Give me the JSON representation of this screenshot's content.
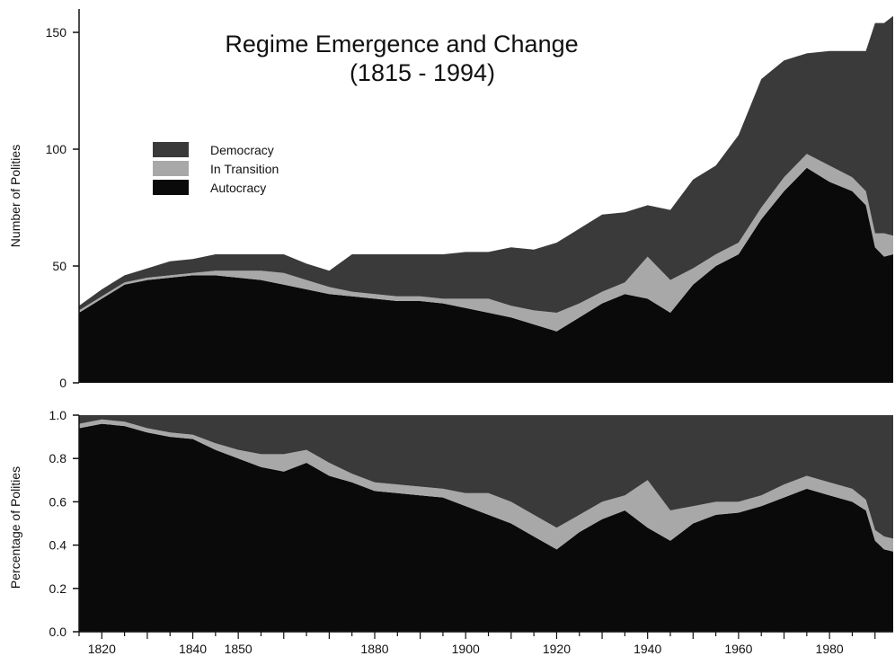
{
  "chart_data": [
    {
      "type": "area",
      "stacked": true,
      "title": "Regime Emergence and Change",
      "subtitle": "(1815 - 1994)",
      "xlabel": "",
      "ylabel": "Number of Polities",
      "xlim": [
        1815,
        1994
      ],
      "ylim": [
        0,
        160
      ],
      "y_ticks": [
        "0",
        "50",
        "100",
        "150"
      ],
      "y_tick_values": [
        0,
        50,
        100,
        150
      ],
      "grid": false,
      "legend_position": "upper-left",
      "x": [
        1815,
        1820,
        1825,
        1830,
        1835,
        1840,
        1845,
        1850,
        1855,
        1860,
        1865,
        1870,
        1875,
        1880,
        1885,
        1890,
        1895,
        1900,
        1905,
        1910,
        1915,
        1920,
        1925,
        1930,
        1935,
        1940,
        1945,
        1950,
        1955,
        1960,
        1965,
        1970,
        1975,
        1980,
        1985,
        1988,
        1990,
        1992,
        1994
      ],
      "series": [
        {
          "name": "Autocracy",
          "color": "#0a0a0a",
          "values": [
            30,
            36,
            42,
            44,
            45,
            46,
            46,
            45,
            44,
            42,
            40,
            38,
            37,
            36,
            35,
            35,
            34,
            32,
            30,
            28,
            25,
            22,
            28,
            34,
            38,
            36,
            30,
            42,
            50,
            55,
            70,
            82,
            92,
            86,
            82,
            76,
            58,
            54,
            55
          ]
        },
        {
          "name": "In Transition",
          "color": "#a8a8a8",
          "values": [
            1,
            1,
            1,
            1,
            1,
            1,
            2,
            3,
            4,
            5,
            4,
            3,
            2,
            2,
            2,
            2,
            2,
            4,
            6,
            5,
            6,
            8,
            6,
            5,
            5,
            18,
            14,
            7,
            5,
            5,
            5,
            6,
            6,
            7,
            6,
            6,
            6,
            10,
            8
          ]
        },
        {
          "name": "Democracy",
          "color": "#3a3a3a",
          "values": [
            2,
            3,
            3,
            4,
            6,
            6,
            7,
            7,
            7,
            8,
            7,
            7,
            16,
            17,
            18,
            18,
            19,
            20,
            20,
            25,
            26,
            30,
            32,
            33,
            30,
            22,
            30,
            38,
            38,
            46,
            55,
            50,
            43,
            49,
            54,
            60,
            90,
            90,
            94
          ]
        }
      ]
    },
    {
      "type": "area",
      "stacked": true,
      "title": "",
      "xlabel": "",
      "ylabel": "Percentage of Polities",
      "xlim": [
        1815,
        1994
      ],
      "ylim": [
        0,
        1
      ],
      "y_ticks": [
        "0.0",
        "0.2",
        "0.4",
        "0.6",
        "0.8",
        "1.0"
      ],
      "y_tick_values": [
        0,
        0.2,
        0.4,
        0.6,
        0.8,
        1.0
      ],
      "x_ticks": [
        "1820",
        "1840",
        "1850",
        "1880",
        "1900",
        "1920",
        "1940",
        "1960",
        "1980"
      ],
      "x_tick_values": [
        1820,
        1840,
        1850,
        1880,
        1900,
        1920,
        1940,
        1960,
        1980
      ],
      "grid": false,
      "x": [
        1815,
        1820,
        1825,
        1830,
        1835,
        1840,
        1845,
        1850,
        1855,
        1860,
        1865,
        1870,
        1875,
        1880,
        1885,
        1890,
        1895,
        1900,
        1905,
        1910,
        1915,
        1920,
        1925,
        1930,
        1935,
        1940,
        1945,
        1950,
        1955,
        1960,
        1965,
        1970,
        1975,
        1980,
        1985,
        1988,
        1990,
        1992,
        1994
      ],
      "series": [
        {
          "name": "Autocracy",
          "color": "#0a0a0a",
          "values": [
            0.94,
            0.96,
            0.95,
            0.92,
            0.9,
            0.89,
            0.84,
            0.8,
            0.76,
            0.74,
            0.78,
            0.72,
            0.69,
            0.65,
            0.64,
            0.63,
            0.62,
            0.58,
            0.54,
            0.5,
            0.44,
            0.38,
            0.46,
            0.52,
            0.56,
            0.48,
            0.42,
            0.5,
            0.54,
            0.55,
            0.58,
            0.62,
            0.66,
            0.63,
            0.6,
            0.56,
            0.42,
            0.38,
            0.37
          ]
        },
        {
          "name": "In Transition",
          "color": "#a8a8a8",
          "values": [
            0.02,
            0.02,
            0.02,
            0.02,
            0.02,
            0.02,
            0.03,
            0.04,
            0.06,
            0.08,
            0.06,
            0.06,
            0.04,
            0.04,
            0.04,
            0.04,
            0.04,
            0.06,
            0.1,
            0.1,
            0.1,
            0.1,
            0.08,
            0.08,
            0.07,
            0.22,
            0.14,
            0.08,
            0.06,
            0.05,
            0.05,
            0.06,
            0.06,
            0.06,
            0.06,
            0.05,
            0.05,
            0.06,
            0.06
          ]
        },
        {
          "name": "Democracy",
          "color": "#3a3a3a",
          "values": [
            0.04,
            0.02,
            0.03,
            0.06,
            0.08,
            0.09,
            0.13,
            0.16,
            0.18,
            0.18,
            0.16,
            0.22,
            0.27,
            0.31,
            0.32,
            0.33,
            0.34,
            0.36,
            0.36,
            0.4,
            0.46,
            0.52,
            0.46,
            0.4,
            0.37,
            0.3,
            0.44,
            0.42,
            0.4,
            0.4,
            0.37,
            0.32,
            0.28,
            0.31,
            0.34,
            0.39,
            0.53,
            0.56,
            0.57
          ]
        }
      ]
    }
  ]
}
